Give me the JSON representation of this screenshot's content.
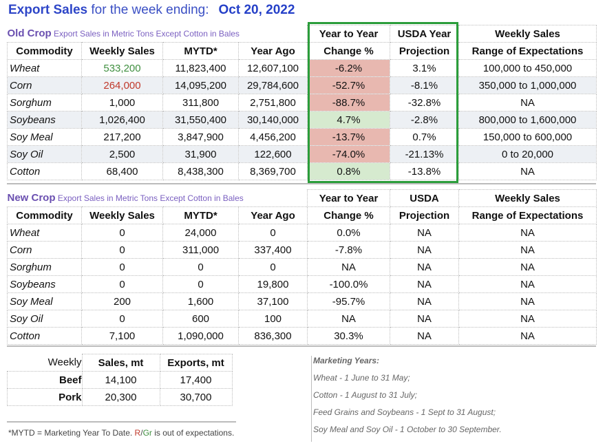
{
  "title": {
    "main": "Export Sales",
    "rest": "for the week ending:",
    "date": "Oct 20, 2022"
  },
  "old": {
    "label": "Old Crop",
    "sub": "Export Sales in Metric Tons Except Cotton in Bales",
    "headers": [
      "Commodity",
      "Weekly Sales",
      "MYTD*",
      "Year Ago",
      "Change %",
      "Projection",
      "Range of Expectations"
    ],
    "headers_top": [
      "Year to Year",
      "USDA Year",
      "Weekly Sales"
    ],
    "rows": [
      [
        "Wheat",
        "533,200",
        "11,823,400",
        "12,607,100",
        "-6.2%",
        "3.1%",
        "100,000 to 450,000"
      ],
      [
        "Corn",
        "264,000",
        "14,095,200",
        "29,784,600",
        "-52.7%",
        "-8.1%",
        "350,000 to 1,000,000"
      ],
      [
        "Sorghum",
        "1,000",
        "311,800",
        "2,751,800",
        "-88.7%",
        "-32.8%",
        "NA"
      ],
      [
        "Soybeans",
        "1,026,400",
        "31,550,400",
        "30,140,000",
        "4.7%",
        "-2.8%",
        "800,000 to 1,600,000"
      ],
      [
        "Soy Meal",
        "217,200",
        "3,847,900",
        "4,456,200",
        "-13.7%",
        "0.7%",
        "150,000 to 600,000"
      ],
      [
        "Soy Oil",
        "2,500",
        "31,900",
        "122,600",
        "-74.0%",
        "-21.13%",
        "0 to 20,000"
      ],
      [
        "Cotton",
        "68,400",
        "8,438,300",
        "8,369,700",
        "0.8%",
        "-13.8%",
        "NA"
      ]
    ]
  },
  "new": {
    "label": "New Crop",
    "sub": "Export Sales in Metric Tons Except Cotton in Bales",
    "headers": [
      "Commodity",
      "Weekly Sales",
      "MYTD*",
      "Year Ago",
      "Change %",
      "Projection",
      "Range of Expectations"
    ],
    "headers_top": [
      "Year to Year",
      "USDA",
      "Weekly Sales"
    ],
    "rows": [
      [
        "Wheat",
        "0",
        "24,000",
        "0",
        "0.0%",
        "NA",
        "NA"
      ],
      [
        "Corn",
        "0",
        "311,000",
        "337,400",
        "-7.8%",
        "NA",
        "NA"
      ],
      [
        "Sorghum",
        "0",
        "0",
        "0",
        "NA",
        "NA",
        "NA"
      ],
      [
        "Soybeans",
        "0",
        "0",
        "19,800",
        "-100.0%",
        "NA",
        "NA"
      ],
      [
        "Soy Meal",
        "200",
        "1,600",
        "37,100",
        "-95.7%",
        "NA",
        "NA"
      ],
      [
        "Soy Oil",
        "0",
        "600",
        "100",
        "NA",
        "NA",
        "NA"
      ],
      [
        "Cotton",
        "7,100",
        "1,090,000",
        "836,300",
        "30.3%",
        "NA",
        "NA"
      ]
    ]
  },
  "meat": {
    "headers": [
      "Weekly",
      "Sales, mt",
      "Exports, mt"
    ],
    "rows": [
      [
        "Beef",
        "14,100",
        "17,400"
      ],
      [
        "Pork",
        "20,300",
        "30,700"
      ]
    ]
  },
  "footnote": {
    "a": "*MYTD = Marketing Year To Date.",
    "r": "R",
    "slash": "/",
    "g": "Gr",
    "b": "is out of expectations."
  },
  "marketing_years": [
    "Marketing Years:",
    "Wheat - 1 June to 31 May;",
    "Cotton - 1 August to 31 July;",
    "Feed Grains and Soybeans - 1 Sept to 31 August;",
    "Soy Meal and Soy Oil - 1 October to 30 September."
  ],
  "colors": {
    "accent": "#2e46c8",
    "box": "#2a9d3a",
    "red": "#e8b8b0",
    "green": "#d6eacf"
  }
}
